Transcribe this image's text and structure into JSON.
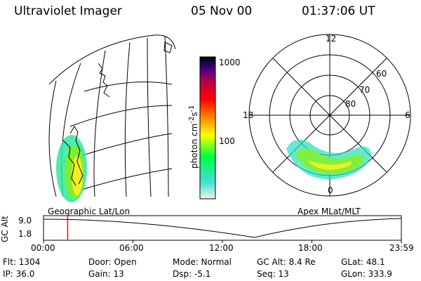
{
  "header": {
    "title": "Ultraviolet Imager",
    "date": "05 Nov 00",
    "time": "01:37:06 UT"
  },
  "colorbar": {
    "label": "photon cm",
    "label_sup1": "-2",
    "label_mid": "s",
    "label_sup2": "-1",
    "ticks": [
      "1000",
      "100"
    ],
    "tick_values": [
      1000,
      100
    ],
    "scale": "log",
    "colors": [
      "#f0f0f0",
      "#40e0d0",
      "#00ff40",
      "#ffff00",
      "#ff8000",
      "#ff0000",
      "#c00040",
      "#400080",
      "#000000"
    ]
  },
  "polar": {
    "mlt_labels": {
      "top": "12",
      "left": "18",
      "right": "6",
      "bottom": "0"
    },
    "lat_labels": [
      "60",
      "70",
      "80"
    ]
  },
  "panels": {
    "geo_label": "Geographic Lat/Lon",
    "apex_label": "Apex MLat/MLT"
  },
  "timeline": {
    "ylabel": "GC Alt",
    "yticks": [
      "9.0",
      "1.8"
    ],
    "xticks": [
      "00:00",
      "06:00",
      "12:00",
      "18:00",
      "23:59"
    ],
    "marker_hour": 1.62,
    "accent": "#ff0000"
  },
  "info": {
    "flt": "Flt: 1304",
    "door": "Door: Open",
    "mode": "Mode: Normal",
    "gcalt": "GC Alt: 8.4 Re",
    "glat": "GLat:  48.1",
    "ip": "IP: 36.0",
    "gain": "Gain: 13",
    "dsp": "Dsp:   -5.1",
    "seq": "Seq: 13",
    "glon": "GLon: 333.9"
  }
}
